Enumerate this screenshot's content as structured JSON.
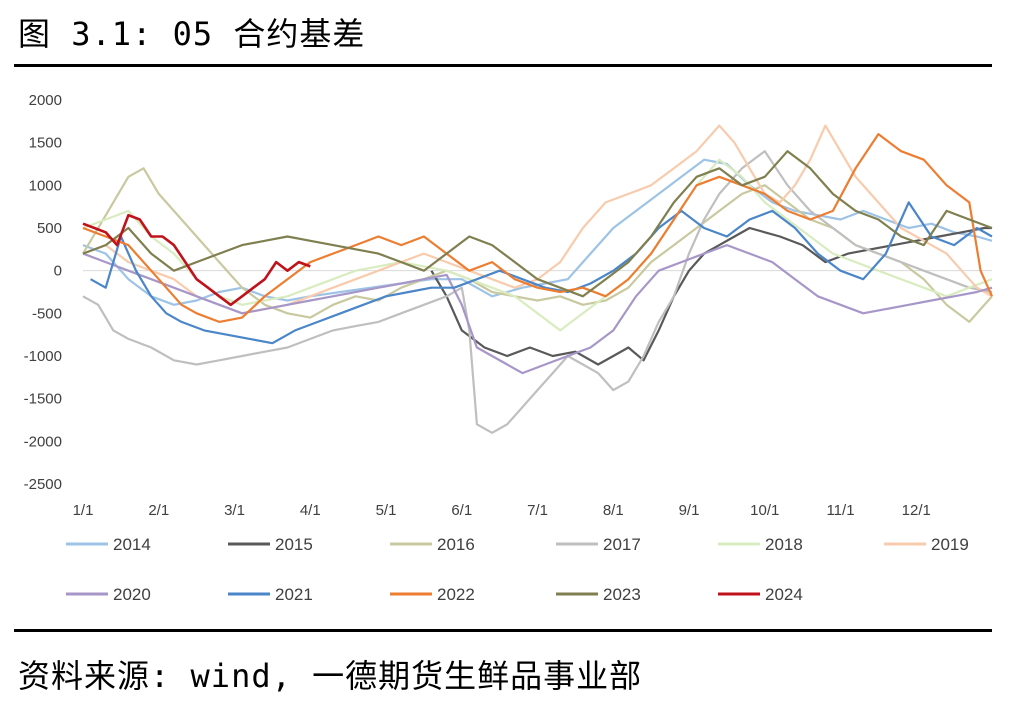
{
  "figure": {
    "title": "图 3.1: 05 合约基差",
    "source": "资料来源: wind, 一德期货生鲜品事业部"
  },
  "chart_data": {
    "type": "line",
    "title": "",
    "xlabel": "",
    "ylabel": "",
    "ylim": [
      -2500,
      2000
    ],
    "yticks": [
      2000,
      1500,
      1000,
      500,
      0,
      -500,
      -1000,
      -1500,
      -2000,
      -2500
    ],
    "xlim": [
      0,
      12
    ],
    "xticks": [
      "1/1",
      "2/1",
      "3/1",
      "4/1",
      "5/1",
      "6/1",
      "7/1",
      "8/1",
      "9/1",
      "10/1",
      "11/1",
      "12/1"
    ],
    "x_unit": "month index from 1/1 (0 = 1/1, 1 = 2/1, ...)",
    "grid": false,
    "legend_position": "bottom",
    "series": [
      {
        "name": "2014",
        "color": "#9dc3e6",
        "x": [
          0,
          0.3,
          0.6,
          0.9,
          1.2,
          1.5,
          1.8,
          2.1,
          2.4,
          2.7,
          3.0,
          3.4,
          3.8,
          4.2,
          4.6,
          5.0,
          5.4,
          5.8,
          6.1,
          6.4,
          6.7,
          7.0,
          7.3,
          7.6,
          7.9,
          8.2,
          8.5,
          8.8,
          9.1,
          9.4,
          9.7,
          10.0,
          10.3,
          10.6,
          10.9,
          11.2,
          11.5,
          11.8,
          12.0
        ],
        "y": [
          300,
          200,
          -100,
          -300,
          -400,
          -350,
          -250,
          -200,
          -300,
          -350,
          -300,
          -250,
          -200,
          -150,
          -100,
          -100,
          -300,
          -200,
          -150,
          -100,
          200,
          500,
          700,
          900,
          1100,
          1300,
          1250,
          1000,
          800,
          700,
          650,
          600,
          700,
          600,
          500,
          550,
          450,
          400,
          350
        ]
      },
      {
        "name": "2015",
        "color": "#595959",
        "x": [
          4.6,
          4.8,
          5.0,
          5.3,
          5.6,
          5.9,
          6.2,
          6.5,
          6.8,
          7.0,
          7.2,
          7.4,
          7.6,
          7.8,
          8.0,
          8.2,
          8.4,
          8.6,
          8.8,
          9.0,
          9.2,
          9.5,
          9.8,
          10.1,
          10.4,
          10.7,
          11.0,
          11.3,
          11.6,
          11.9,
          12.0
        ],
        "y": [
          0,
          -300,
          -700,
          -900,
          -1000,
          -900,
          -1000,
          -950,
          -1100,
          -1000,
          -900,
          -1050,
          -700,
          -300,
          0,
          200,
          300,
          400,
          500,
          450,
          400,
          300,
          100,
          200,
          250,
          300,
          350,
          400,
          450,
          500,
          500
        ]
      },
      {
        "name": "2016",
        "color": "#c9c9a0",
        "x": [
          0,
          0.2,
          0.4,
          0.6,
          0.8,
          1.0,
          1.2,
          1.5,
          1.8,
          2.1,
          2.4,
          2.7,
          3.0,
          3.3,
          3.6,
          3.9,
          4.2,
          4.5,
          4.8,
          5.1,
          5.4,
          5.7,
          6.0,
          6.3,
          6.6,
          6.9,
          7.2,
          7.5,
          7.8,
          8.1,
          8.4,
          8.7,
          9.0,
          9.3,
          9.6,
          9.9,
          10.2,
          10.5,
          10.8,
          11.1,
          11.4,
          11.7,
          12.0
        ],
        "y": [
          200,
          500,
          800,
          1100,
          1200,
          900,
          700,
          400,
          100,
          -200,
          -400,
          -500,
          -550,
          -400,
          -300,
          -350,
          -200,
          -100,
          0,
          -100,
          -250,
          -300,
          -350,
          -300,
          -400,
          -350,
          -200,
          100,
          300,
          500,
          700,
          900,
          1000,
          800,
          600,
          500,
          300,
          200,
          100,
          -100,
          -400,
          -600,
          -300
        ]
      },
      {
        "name": "2017",
        "color": "#bfbfbf",
        "x": [
          0,
          0.2,
          0.4,
          0.6,
          0.9,
          1.2,
          1.5,
          1.8,
          2.1,
          2.4,
          2.7,
          3.0,
          3.3,
          3.6,
          3.9,
          4.2,
          4.5,
          4.8,
          5.0,
          5.1,
          5.2,
          5.4,
          5.6,
          5.8,
          6.0,
          6.2,
          6.4,
          6.6,
          6.8,
          7.0,
          7.2,
          7.4,
          7.6,
          7.8,
          8.0,
          8.2,
          8.4,
          8.7,
          9.0,
          9.3,
          9.6,
          9.9,
          10.2,
          10.5,
          10.8,
          11.1,
          11.4,
          11.7,
          12.0
        ],
        "y": [
          -300,
          -400,
          -700,
          -800,
          -900,
          -1050,
          -1100,
          -1050,
          -1000,
          -950,
          -900,
          -800,
          -700,
          -650,
          -600,
          -500,
          -400,
          -300,
          -200,
          -700,
          -1800,
          -1900,
          -1800,
          -1600,
          -1400,
          -1200,
          -1000,
          -1100,
          -1200,
          -1400,
          -1300,
          -1000,
          -600,
          -300,
          200,
          600,
          900,
          1200,
          1400,
          1000,
          700,
          500,
          300,
          200,
          100,
          0,
          -100,
          -200,
          -250
        ]
      },
      {
        "name": "2018",
        "color": "#d9ecc0",
        "x": [
          0,
          0.3,
          0.6,
          0.9,
          1.2,
          1.5,
          1.8,
          2.1,
          2.4,
          2.7,
          3.0,
          3.3,
          3.6,
          3.9,
          4.2,
          4.5,
          4.8,
          5.1,
          5.4,
          5.7,
          6.0,
          6.3,
          6.6,
          6.9,
          7.2,
          7.5,
          7.8,
          8.1,
          8.4,
          8.7,
          9.0,
          9.3,
          9.6,
          9.9,
          10.2,
          10.5,
          10.8,
          11.1,
          11.4,
          11.7,
          12.0
        ],
        "y": [
          500,
          600,
          700,
          400,
          200,
          -100,
          -300,
          -400,
          -350,
          -300,
          -200,
          -100,
          0,
          50,
          100,
          50,
          0,
          -100,
          -200,
          -300,
          -500,
          -700,
          -500,
          -300,
          -100,
          200,
          600,
          1000,
          1300,
          1100,
          800,
          600,
          400,
          200,
          100,
          0,
          -100,
          -200,
          -300,
          -200,
          -100
        ]
      },
      {
        "name": "2019",
        "color": "#f8cbad",
        "x": [
          0,
          0.3,
          0.6,
          0.9,
          1.2,
          1.5,
          1.8,
          2.1,
          2.4,
          2.7,
          3.0,
          3.3,
          3.6,
          3.9,
          4.2,
          4.5,
          4.8,
          5.1,
          5.4,
          5.7,
          6.0,
          6.3,
          6.6,
          6.9,
          7.2,
          7.5,
          7.8,
          8.1,
          8.4,
          8.6,
          8.8,
          9.0,
          9.2,
          9.4,
          9.6,
          9.8,
          10.0,
          10.2,
          10.4,
          10.6,
          10.8,
          11.0,
          11.2,
          11.4,
          11.6,
          11.8,
          12.0
        ],
        "y": [
          200,
          300,
          100,
          0,
          -100,
          -300,
          -400,
          -500,
          -450,
          -400,
          -300,
          -200,
          -100,
          0,
          100,
          200,
          100,
          0,
          -100,
          -200,
          -100,
          100,
          500,
          800,
          900,
          1000,
          1200,
          1400,
          1700,
          1500,
          1200,
          900,
          800,
          1000,
          1300,
          1700,
          1400,
          1100,
          900,
          700,
          500,
          400,
          300,
          200,
          0,
          -200,
          -300
        ]
      },
      {
        "name": "2020",
        "color": "#a797c9",
        "x": [
          0,
          0.3,
          0.6,
          0.9,
          1.2,
          1.5,
          1.8,
          2.1,
          2.4,
          2.7,
          3.0,
          3.3,
          3.6,
          3.9,
          4.2,
          4.5,
          4.8,
          5.0,
          5.2,
          5.4,
          5.6,
          5.8,
          6.1,
          6.4,
          6.7,
          7.0,
          7.3,
          7.6,
          7.9,
          8.2,
          8.5,
          8.8,
          9.1,
          9.4,
          9.7,
          10.0,
          10.3,
          10.6,
          10.9,
          11.2,
          11.5,
          11.8,
          12.0
        ],
        "y": [
          200,
          100,
          0,
          -100,
          -200,
          -300,
          -400,
          -500,
          -450,
          -400,
          -350,
          -300,
          -250,
          -200,
          -150,
          -100,
          -50,
          -400,
          -900,
          -1000,
          -1100,
          -1200,
          -1100,
          -1000,
          -900,
          -700,
          -300,
          0,
          100,
          200,
          300,
          200,
          100,
          -100,
          -300,
          -400,
          -500,
          -450,
          -400,
          -350,
          -300,
          -250,
          -200
        ]
      },
      {
        "name": "2021",
        "color": "#4a86c8",
        "x": [
          0.1,
          0.3,
          0.5,
          0.7,
          0.9,
          1.1,
          1.3,
          1.6,
          1.9,
          2.2,
          2.5,
          2.8,
          3.1,
          3.4,
          3.7,
          4.0,
          4.3,
          4.6,
          4.9,
          5.2,
          5.5,
          5.8,
          6.1,
          6.4,
          6.7,
          7.0,
          7.3,
          7.6,
          7.9,
          8.2,
          8.5,
          8.8,
          9.1,
          9.4,
          9.7,
          10.0,
          10.3,
          10.6,
          10.9,
          11.2,
          11.5,
          11.8,
          12.0
        ],
        "y": [
          -100,
          -200,
          400,
          0,
          -300,
          -500,
          -600,
          -700,
          -750,
          -800,
          -850,
          -700,
          -600,
          -500,
          -400,
          -300,
          -250,
          -200,
          -200,
          -100,
          0,
          -100,
          -200,
          -250,
          -150,
          0,
          200,
          500,
          700,
          500,
          400,
          600,
          700,
          500,
          200,
          0,
          -100,
          200,
          800,
          400,
          300,
          500,
          400
        ]
      },
      {
        "name": "2022",
        "color": "#ed7d31",
        "x": [
          0,
          0.3,
          0.6,
          0.9,
          1.1,
          1.3,
          1.5,
          1.8,
          2.1,
          2.4,
          2.7,
          3.0,
          3.3,
          3.6,
          3.9,
          4.2,
          4.5,
          4.8,
          5.1,
          5.4,
          5.7,
          6.0,
          6.3,
          6.6,
          6.9,
          7.2,
          7.5,
          7.8,
          8.1,
          8.4,
          8.7,
          9.0,
          9.3,
          9.6,
          9.9,
          10.2,
          10.5,
          10.8,
          11.1,
          11.4,
          11.7,
          11.85,
          12.0
        ],
        "y": [
          500,
          400,
          300,
          0,
          -200,
          -400,
          -500,
          -600,
          -550,
          -300,
          -100,
          100,
          200,
          300,
          400,
          300,
          400,
          200,
          0,
          100,
          -100,
          -200,
          -250,
          -200,
          -300,
          -100,
          200,
          600,
          1000,
          1100,
          1000,
          900,
          700,
          600,
          700,
          1200,
          1600,
          1400,
          1300,
          1000,
          800,
          0,
          -300
        ]
      },
      {
        "name": "2023",
        "color": "#7f7f4f",
        "x": [
          0,
          0.3,
          0.6,
          0.9,
          1.2,
          1.5,
          1.8,
          2.1,
          2.4,
          2.7,
          3.0,
          3.3,
          3.6,
          3.9,
          4.2,
          4.5,
          4.8,
          5.1,
          5.4,
          5.7,
          6.0,
          6.3,
          6.6,
          6.9,
          7.2,
          7.5,
          7.8,
          8.1,
          8.4,
          8.7,
          9.0,
          9.3,
          9.6,
          9.9,
          10.2,
          10.5,
          10.8,
          11.1,
          11.4,
          11.7,
          12.0
        ],
        "y": [
          200,
          300,
          500,
          200,
          0,
          100,
          200,
          300,
          350,
          400,
          350,
          300,
          250,
          200,
          100,
          0,
          200,
          400,
          300,
          100,
          -100,
          -200,
          -300,
          -100,
          100,
          400,
          800,
          1100,
          1200,
          1000,
          1100,
          1400,
          1200,
          900,
          700,
          600,
          400,
          300,
          700,
          600,
          500
        ]
      },
      {
        "name": "2024",
        "color": "#c0121b",
        "x": [
          0,
          0.15,
          0.3,
          0.45,
          0.6,
          0.75,
          0.9,
          1.05,
          1.2,
          1.35,
          1.5,
          1.65,
          1.8,
          1.95,
          2.1,
          2.25,
          2.4,
          2.55,
          2.7,
          2.85,
          3.0
        ],
        "y": [
          550,
          500,
          450,
          300,
          650,
          600,
          400,
          400,
          300,
          100,
          -100,
          -200,
          -300,
          -400,
          -300,
          -200,
          -100,
          100,
          0,
          100,
          50
        ]
      }
    ]
  }
}
